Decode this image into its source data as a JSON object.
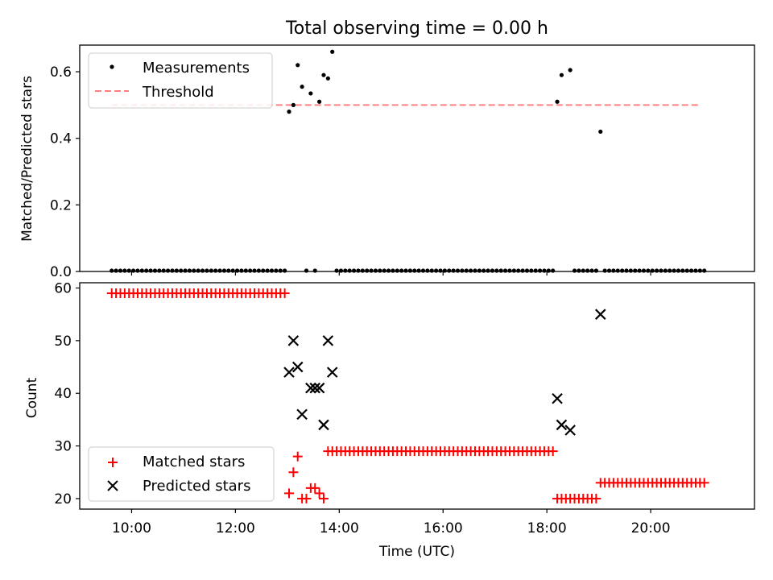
{
  "chart_data": [
    {
      "type": "scatter",
      "title": "Total observing time = 0.00 h",
      "xlabel": "",
      "ylabel": "Matched/Predicted stars",
      "xlim_hours": [
        9.0,
        22.0
      ],
      "ylim": [
        0.0,
        0.68
      ],
      "yticks": [
        0.0,
        0.2,
        0.4,
        0.6
      ],
      "ytick_labels": [
        "0.0",
        "0.2",
        "0.4",
        "0.6"
      ],
      "grid": false,
      "legend_position": "upper-left",
      "legend": [
        "Measurements",
        "Threshold"
      ],
      "threshold": {
        "name": "Threshold",
        "y": 0.5,
        "x_range": [
          "09:37",
          "20:55"
        ],
        "color": "#ff8080",
        "style": "dashed"
      },
      "series": [
        {
          "name": "Measurements",
          "color": "#000000",
          "marker": "dot",
          "points": [
            [
              "13:02",
              0.48
            ],
            [
              "13:07",
              0.5
            ],
            [
              "13:12",
              0.62
            ],
            [
              "13:17",
              0.555
            ],
            [
              "13:27",
              0.535
            ],
            [
              "13:37",
              0.51
            ],
            [
              "13:42",
              0.59
            ],
            [
              "13:47",
              0.58
            ],
            [
              "13:52",
              0.66
            ],
            [
              "18:12",
              0.51
            ],
            [
              "18:17",
              0.59
            ],
            [
              "18:27",
              0.605
            ],
            [
              "19:02",
              0.42
            ]
          ],
          "zero_ranges": [
            [
              "09:37",
              "12:57"
            ],
            [
              "13:57",
              "18:07"
            ],
            [
              "18:32",
              "18:57"
            ],
            [
              "19:07",
              "21:02"
            ]
          ],
          "zero_points": [
            "13:22",
            "13:32"
          ],
          "step_minutes": 5
        }
      ]
    },
    {
      "type": "scatter",
      "title": "",
      "xlabel": "Time (UTC)",
      "ylabel": "Count",
      "xlim_hours": [
        9.0,
        22.0
      ],
      "ylim": [
        18,
        61
      ],
      "yticks": [
        20,
        30,
        40,
        50,
        60
      ],
      "ytick_labels": [
        "20",
        "30",
        "40",
        "50",
        "60"
      ],
      "xticks": [
        "10:00",
        "12:00",
        "14:00",
        "16:00",
        "18:00",
        "20:00"
      ],
      "grid": false,
      "legend_position": "lower-left",
      "legend": [
        "Matched stars",
        "Predicted stars"
      ],
      "series": [
        {
          "name": "Matched stars",
          "color": "#ff0000",
          "marker": "plus",
          "ranges": [
            {
              "from": "09:37",
              "to": "12:57",
              "step_minutes": 5,
              "y": 59
            },
            {
              "from": "13:47",
              "to": "18:07",
              "step_minutes": 5,
              "y": 29
            },
            {
              "from": "18:12",
              "to": "18:57",
              "step_minutes": 5,
              "y": 20
            },
            {
              "from": "19:02",
              "to": "21:02",
              "step_minutes": 5,
              "y": 23
            }
          ],
          "points": [
            [
              "13:02",
              21
            ],
            [
              "13:07",
              25
            ],
            [
              "13:12",
              28
            ],
            [
              "13:17",
              20
            ],
            [
              "13:22",
              20
            ],
            [
              "13:27",
              22
            ],
            [
              "13:32",
              22
            ],
            [
              "13:37",
              21
            ],
            [
              "13:42",
              20
            ]
          ]
        },
        {
          "name": "Predicted stars",
          "color": "#000000",
          "marker": "x",
          "points": [
            [
              "13:02",
              44
            ],
            [
              "13:07",
              50
            ],
            [
              "13:12",
              45
            ],
            [
              "13:17",
              36
            ],
            [
              "13:27",
              41
            ],
            [
              "13:32",
              41
            ],
            [
              "13:37",
              41
            ],
            [
              "13:42",
              34
            ],
            [
              "13:47",
              50
            ],
            [
              "13:52",
              44
            ],
            [
              "18:12",
              39
            ],
            [
              "18:17",
              34
            ],
            [
              "18:27",
              33
            ],
            [
              "19:02",
              55
            ]
          ]
        }
      ]
    }
  ]
}
